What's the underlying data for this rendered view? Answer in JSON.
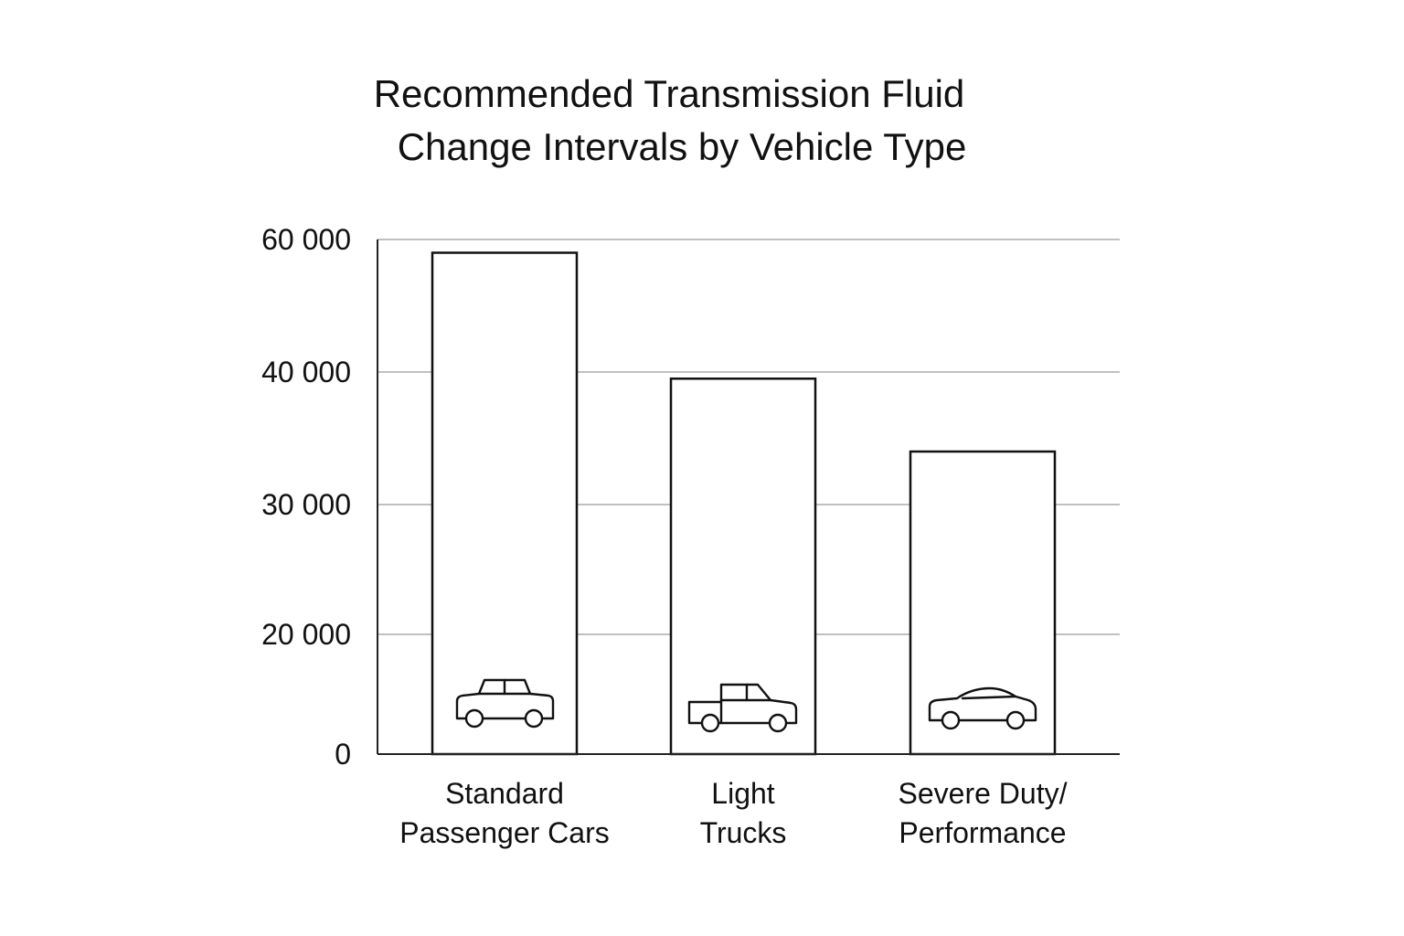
{
  "chart_data": {
    "type": "bar",
    "title_lines": [
      "Recommended Transmission Fluid",
      "Change Intervals by Vehicle Type"
    ],
    "categories": [
      {
        "lines": [
          "Standard",
          "Passenger Cars"
        ],
        "icon": "sedan-icon"
      },
      {
        "lines": [
          "Light",
          "Trucks"
        ],
        "icon": "pickup-truck-icon"
      },
      {
        "lines": [
          "Severe Duty/",
          "Performance"
        ],
        "icon": "sports-car-icon"
      }
    ],
    "values": [
      58000,
      39500,
      34000
    ],
    "y_ticks": [
      {
        "value": 0,
        "label": "0"
      },
      {
        "value": 20000,
        "label": "20 000"
      },
      {
        "value": 30000,
        "label": "30 000"
      },
      {
        "value": 40000,
        "label": "40 000"
      },
      {
        "value": 60000,
        "label": "60 000"
      }
    ],
    "xlabel": "",
    "ylabel": "",
    "ylim": [
      0,
      60000
    ],
    "grid": true,
    "colors": {
      "bar_fill": "#ffffff",
      "bar_stroke": "#111111",
      "grid": "#9a9a9a",
      "text": "#111111"
    }
  }
}
